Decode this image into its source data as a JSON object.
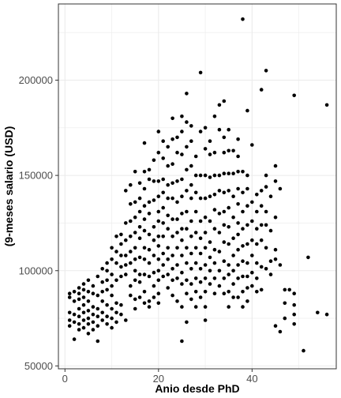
{
  "chart_data": {
    "type": "scatter",
    "title": "",
    "xlabel": "Anio desde PhD",
    "ylabel": "(9-meses salario (USD)",
    "xlim": [
      -1.4,
      58
    ],
    "ylim": [
      48500,
      240000
    ],
    "x_ticks": [
      0,
      20,
      40
    ],
    "x_tick_labels": [
      "0",
      "20",
      "40"
    ],
    "y_ticks": [
      50000,
      100000,
      150000,
      200000
    ],
    "y_tick_labels": [
      "50000",
      "100000",
      "150000",
      "200000"
    ],
    "grid": true,
    "legend": "none",
    "point_color": "#000000",
    "panel_border_color": "#333333",
    "grid_color": "#ebebeb",
    "points": [
      [
        1,
        88000
      ],
      [
        1,
        86000
      ],
      [
        1,
        78000
      ],
      [
        1,
        74000
      ],
      [
        1,
        71000
      ],
      [
        2,
        89000
      ],
      [
        2,
        84000
      ],
      [
        2,
        77000
      ],
      [
        2,
        73000
      ],
      [
        2,
        64000
      ],
      [
        3,
        91000
      ],
      [
        3,
        88000
      ],
      [
        3,
        85000
      ],
      [
        3,
        80000
      ],
      [
        3,
        76000
      ],
      [
        3,
        72000
      ],
      [
        3,
        69000
      ],
      [
        4,
        93000
      ],
      [
        4,
        90000
      ],
      [
        4,
        86000
      ],
      [
        4,
        82000
      ],
      [
        4,
        78000
      ],
      [
        4,
        74000
      ],
      [
        4,
        70000
      ],
      [
        5,
        95000
      ],
      [
        5,
        89000
      ],
      [
        5,
        84000
      ],
      [
        5,
        79000
      ],
      [
        5,
        75000
      ],
      [
        5,
        72000
      ],
      [
        5,
        67000
      ],
      [
        6,
        92000
      ],
      [
        6,
        88000
      ],
      [
        6,
        81000
      ],
      [
        6,
        77000
      ],
      [
        6,
        73000
      ],
      [
        6,
        69000
      ],
      [
        7,
        97000
      ],
      [
        7,
        87000
      ],
      [
        7,
        80000
      ],
      [
        7,
        76000
      ],
      [
        7,
        71000
      ],
      [
        7,
        63000
      ],
      [
        8,
        101000
      ],
      [
        8,
        94000
      ],
      [
        8,
        89000
      ],
      [
        8,
        84000
      ],
      [
        8,
        78000
      ],
      [
        8,
        74000
      ],
      [
        9,
        104000
      ],
      [
        9,
        100000
      ],
      [
        9,
        95000
      ],
      [
        9,
        90000
      ],
      [
        9,
        82000
      ],
      [
        9,
        76000
      ],
      [
        9,
        72000
      ],
      [
        10,
        112000
      ],
      [
        10,
        106000
      ],
      [
        10,
        98000
      ],
      [
        10,
        92000
      ],
      [
        10,
        87000
      ],
      [
        10,
        80000
      ],
      [
        10,
        75000
      ],
      [
        10,
        70000
      ],
      [
        11,
        118000
      ],
      [
        11,
        110000
      ],
      [
        11,
        104000
      ],
      [
        11,
        95000
      ],
      [
        11,
        83000
      ],
      [
        11,
        78000
      ],
      [
        11,
        73000
      ],
      [
        12,
        119000
      ],
      [
        12,
        114000
      ],
      [
        12,
        108000
      ],
      [
        12,
        102000
      ],
      [
        12,
        97000
      ],
      [
        12,
        82000
      ],
      [
        12,
        77000
      ],
      [
        13,
        142000
      ],
      [
        13,
        125000
      ],
      [
        13,
        116000
      ],
      [
        13,
        108000
      ],
      [
        13,
        103000
      ],
      [
        13,
        98000
      ],
      [
        13,
        74000
      ],
      [
        14,
        145000
      ],
      [
        14,
        135000
      ],
      [
        14,
        126000
      ],
      [
        14,
        118000
      ],
      [
        14,
        110000
      ],
      [
        14,
        104000
      ],
      [
        14,
        92000
      ],
      [
        14,
        87000
      ],
      [
        15,
        152000
      ],
      [
        15,
        136000
      ],
      [
        15,
        128000
      ],
      [
        15,
        120000
      ],
      [
        15,
        112000
      ],
      [
        15,
        106000
      ],
      [
        15,
        100000
      ],
      [
        15,
        95000
      ],
      [
        15,
        85000
      ],
      [
        15,
        80000
      ],
      [
        16,
        146000
      ],
      [
        16,
        138000
      ],
      [
        16,
        131000
      ],
      [
        16,
        123000
      ],
      [
        16,
        117000
      ],
      [
        16,
        107000
      ],
      [
        16,
        98000
      ],
      [
        16,
        94000
      ],
      [
        16,
        86000
      ],
      [
        17,
        167000
      ],
      [
        17,
        152000
      ],
      [
        17,
        143000
      ],
      [
        17,
        134000
      ],
      [
        17,
        127000
      ],
      [
        17,
        121000
      ],
      [
        17,
        112000
      ],
      [
        17,
        106000
      ],
      [
        17,
        98000
      ],
      [
        17,
        89000
      ],
      [
        17,
        83000
      ],
      [
        18,
        153000
      ],
      [
        18,
        148000
      ],
      [
        18,
        136000
      ],
      [
        18,
        130000
      ],
      [
        18,
        119000
      ],
      [
        18,
        111000
      ],
      [
        18,
        104000
      ],
      [
        18,
        97000
      ],
      [
        18,
        84000
      ],
      [
        18,
        81000
      ],
      [
        19,
        158000
      ],
      [
        19,
        147000
      ],
      [
        19,
        137000
      ],
      [
        19,
        123000
      ],
      [
        19,
        116000
      ],
      [
        19,
        108000
      ],
      [
        19,
        99000
      ],
      [
        19,
        92000
      ],
      [
        19,
        86000
      ],
      [
        20,
        173000
      ],
      [
        20,
        162000
      ],
      [
        20,
        147000
      ],
      [
        20,
        139000
      ],
      [
        20,
        131000
      ],
      [
        20,
        126000
      ],
      [
        20,
        118000
      ],
      [
        20,
        113000
      ],
      [
        20,
        106000
      ],
      [
        20,
        100000
      ],
      [
        20,
        95000
      ],
      [
        20,
        88000
      ],
      [
        20,
        83000
      ],
      [
        21,
        168000
      ],
      [
        21,
        159000
      ],
      [
        21,
        148000
      ],
      [
        21,
        141000
      ],
      [
        21,
        133000
      ],
      [
        21,
        125000
      ],
      [
        21,
        118000
      ],
      [
        21,
        109000
      ],
      [
        21,
        103000
      ],
      [
        21,
        97000
      ],
      [
        22,
        165000
      ],
      [
        22,
        155000
      ],
      [
        22,
        145000
      ],
      [
        22,
        138000
      ],
      [
        22,
        129000
      ],
      [
        22,
        122000
      ],
      [
        22,
        112000
      ],
      [
        22,
        106000
      ],
      [
        22,
        98000
      ],
      [
        22,
        91000
      ],
      [
        23,
        180000
      ],
      [
        23,
        169000
      ],
      [
        23,
        156000
      ],
      [
        23,
        146000
      ],
      [
        23,
        138000
      ],
      [
        23,
        127000
      ],
      [
        23,
        118000
      ],
      [
        23,
        108000
      ],
      [
        23,
        101000
      ],
      [
        23,
        95000
      ],
      [
        23,
        87000
      ],
      [
        24,
        170000
      ],
      [
        24,
        162000
      ],
      [
        24,
        147000
      ],
      [
        24,
        136000
      ],
      [
        24,
        127000
      ],
      [
        24,
        120000
      ],
      [
        24,
        112000
      ],
      [
        24,
        103000
      ],
      [
        24,
        96000
      ],
      [
        24,
        84000
      ],
      [
        25,
        181000
      ],
      [
        25,
        173000
      ],
      [
        25,
        161000
      ],
      [
        25,
        148000
      ],
      [
        25,
        139000
      ],
      [
        25,
        130000
      ],
      [
        25,
        122000
      ],
      [
        25,
        116000
      ],
      [
        25,
        108000
      ],
      [
        25,
        99000
      ],
      [
        25,
        93000
      ],
      [
        25,
        81000
      ],
      [
        25,
        63000
      ],
      [
        26,
        193000
      ],
      [
        26,
        178000
      ],
      [
        26,
        165000
      ],
      [
        26,
        153000
      ],
      [
        26,
        142000
      ],
      [
        26,
        131000
      ],
      [
        26,
        122000
      ],
      [
        26,
        112000
      ],
      [
        26,
        104000
      ],
      [
        26,
        95000
      ],
      [
        26,
        88000
      ],
      [
        26,
        73000
      ],
      [
        27,
        176000
      ],
      [
        27,
        168000
      ],
      [
        27,
        155000
      ],
      [
        27,
        145000
      ],
      [
        27,
        138000
      ],
      [
        27,
        126000
      ],
      [
        27,
        118000
      ],
      [
        27,
        109000
      ],
      [
        27,
        101000
      ],
      [
        27,
        93000
      ],
      [
        27,
        85000
      ],
      [
        28,
        160000
      ],
      [
        28,
        150000
      ],
      [
        28,
        141000
      ],
      [
        28,
        131000
      ],
      [
        28,
        120000
      ],
      [
        28,
        112000
      ],
      [
        28,
        104000
      ],
      [
        28,
        96000
      ],
      [
        28,
        89000
      ],
      [
        28,
        81000
      ],
      [
        29,
        204000
      ],
      [
        29,
        173000
      ],
      [
        29,
        150000
      ],
      [
        29,
        138000
      ],
      [
        29,
        126000
      ],
      [
        29,
        117000
      ],
      [
        29,
        109000
      ],
      [
        29,
        101000
      ],
      [
        29,
        94000
      ],
      [
        29,
        86000
      ],
      [
        30,
        175000
      ],
      [
        30,
        164000
      ],
      [
        30,
        150000
      ],
      [
        30,
        138000
      ],
      [
        30,
        128000
      ],
      [
        30,
        120000
      ],
      [
        30,
        112000
      ],
      [
        30,
        103000
      ],
      [
        30,
        96000
      ],
      [
        30,
        89000
      ],
      [
        30,
        81000
      ],
      [
        30,
        74000
      ],
      [
        31,
        168000
      ],
      [
        31,
        161000
      ],
      [
        31,
        149000
      ],
      [
        31,
        139000
      ],
      [
        31,
        126000
      ],
      [
        31,
        115000
      ],
      [
        31,
        107000
      ],
      [
        31,
        100000
      ],
      [
        31,
        93000
      ],
      [
        32,
        181000
      ],
      [
        32,
        162000
      ],
      [
        32,
        150000
      ],
      [
        32,
        140000
      ],
      [
        32,
        132000
      ],
      [
        32,
        122000
      ],
      [
        32,
        111000
      ],
      [
        32,
        104000
      ],
      [
        32,
        96000
      ],
      [
        32,
        88000
      ],
      [
        33,
        187000
      ],
      [
        33,
        174000
      ],
      [
        33,
        150000
      ],
      [
        33,
        142000
      ],
      [
        33,
        130000
      ],
      [
        33,
        120000
      ],
      [
        33,
        110000
      ],
      [
        33,
        100000
      ],
      [
        33,
        92000
      ],
      [
        34,
        189000
      ],
      [
        34,
        170000
      ],
      [
        34,
        162000
      ],
      [
        34,
        151000
      ],
      [
        34,
        141000
      ],
      [
        34,
        131000
      ],
      [
        34,
        124000
      ],
      [
        34,
        115000
      ],
      [
        34,
        105000
      ],
      [
        34,
        96000
      ],
      [
        34,
        88000
      ],
      [
        35,
        174000
      ],
      [
        35,
        163000
      ],
      [
        35,
        151000
      ],
      [
        35,
        142000
      ],
      [
        35,
        133000
      ],
      [
        35,
        123000
      ],
      [
        35,
        114000
      ],
      [
        35,
        103000
      ],
      [
        35,
        98000
      ],
      [
        35,
        89000
      ],
      [
        35,
        81000
      ],
      [
        36,
        163000
      ],
      [
        36,
        151000
      ],
      [
        36,
        139000
      ],
      [
        36,
        128000
      ],
      [
        36,
        117000
      ],
      [
        36,
        108000
      ],
      [
        36,
        100000
      ],
      [
        36,
        93000
      ],
      [
        36,
        86000
      ],
      [
        37,
        169000
      ],
      [
        37,
        160000
      ],
      [
        37,
        152000
      ],
      [
        37,
        143000
      ],
      [
        37,
        135000
      ],
      [
        37,
        125000
      ],
      [
        37,
        119000
      ],
      [
        37,
        111000
      ],
      [
        37,
        103000
      ],
      [
        37,
        96000
      ],
      [
        37,
        86000
      ],
      [
        38,
        232000
      ],
      [
        38,
        152000
      ],
      [
        38,
        141000
      ],
      [
        38,
        131000
      ],
      [
        38,
        122000
      ],
      [
        38,
        113000
      ],
      [
        38,
        105000
      ],
      [
        38,
        97000
      ],
      [
        38,
        89000
      ],
      [
        38,
        81000
      ],
      [
        39,
        184000
      ],
      [
        39,
        150000
      ],
      [
        39,
        143000
      ],
      [
        39,
        134000
      ],
      [
        39,
        124000
      ],
      [
        39,
        114000
      ],
      [
        39,
        104000
      ],
      [
        39,
        97000
      ],
      [
        39,
        91000
      ],
      [
        39,
        84000
      ],
      [
        40,
        166000
      ],
      [
        40,
        136000
      ],
      [
        40,
        126000
      ],
      [
        40,
        116000
      ],
      [
        40,
        108000
      ],
      [
        40,
        99000
      ],
      [
        40,
        92000
      ],
      [
        41,
        140000
      ],
      [
        41,
        131000
      ],
      [
        41,
        122000
      ],
      [
        41,
        114000
      ],
      [
        41,
        104000
      ],
      [
        41,
        96000
      ],
      [
        41,
        89000
      ],
      [
        42,
        195000
      ],
      [
        42,
        142000
      ],
      [
        42,
        134000
      ],
      [
        42,
        124000
      ],
      [
        42,
        116000
      ],
      [
        42,
        102000
      ],
      [
        42,
        90000
      ],
      [
        43,
        205000
      ],
      [
        43,
        150000
      ],
      [
        43,
        144000
      ],
      [
        43,
        131000
      ],
      [
        43,
        124000
      ],
      [
        43,
        112000
      ],
      [
        43,
        101000
      ],
      [
        44,
        139000
      ],
      [
        44,
        121000
      ],
      [
        44,
        105000
      ],
      [
        44,
        98000
      ],
      [
        45,
        155000
      ],
      [
        45,
        147000
      ],
      [
        45,
        128000
      ],
      [
        45,
        111000
      ],
      [
        45,
        106000
      ],
      [
        45,
        71000
      ],
      [
        46,
        143000
      ],
      [
        46,
        103000
      ],
      [
        46,
        68000
      ],
      [
        47,
        90000
      ],
      [
        47,
        83000
      ],
      [
        47,
        75000
      ],
      [
        48,
        90000
      ],
      [
        49,
        192000
      ],
      [
        49,
        88000
      ],
      [
        49,
        82000
      ],
      [
        49,
        77000
      ],
      [
        49,
        72000
      ],
      [
        51,
        58000
      ],
      [
        52,
        107000
      ],
      [
        54,
        78000
      ],
      [
        56,
        187000
      ],
      [
        56,
        77000
      ]
    ]
  }
}
